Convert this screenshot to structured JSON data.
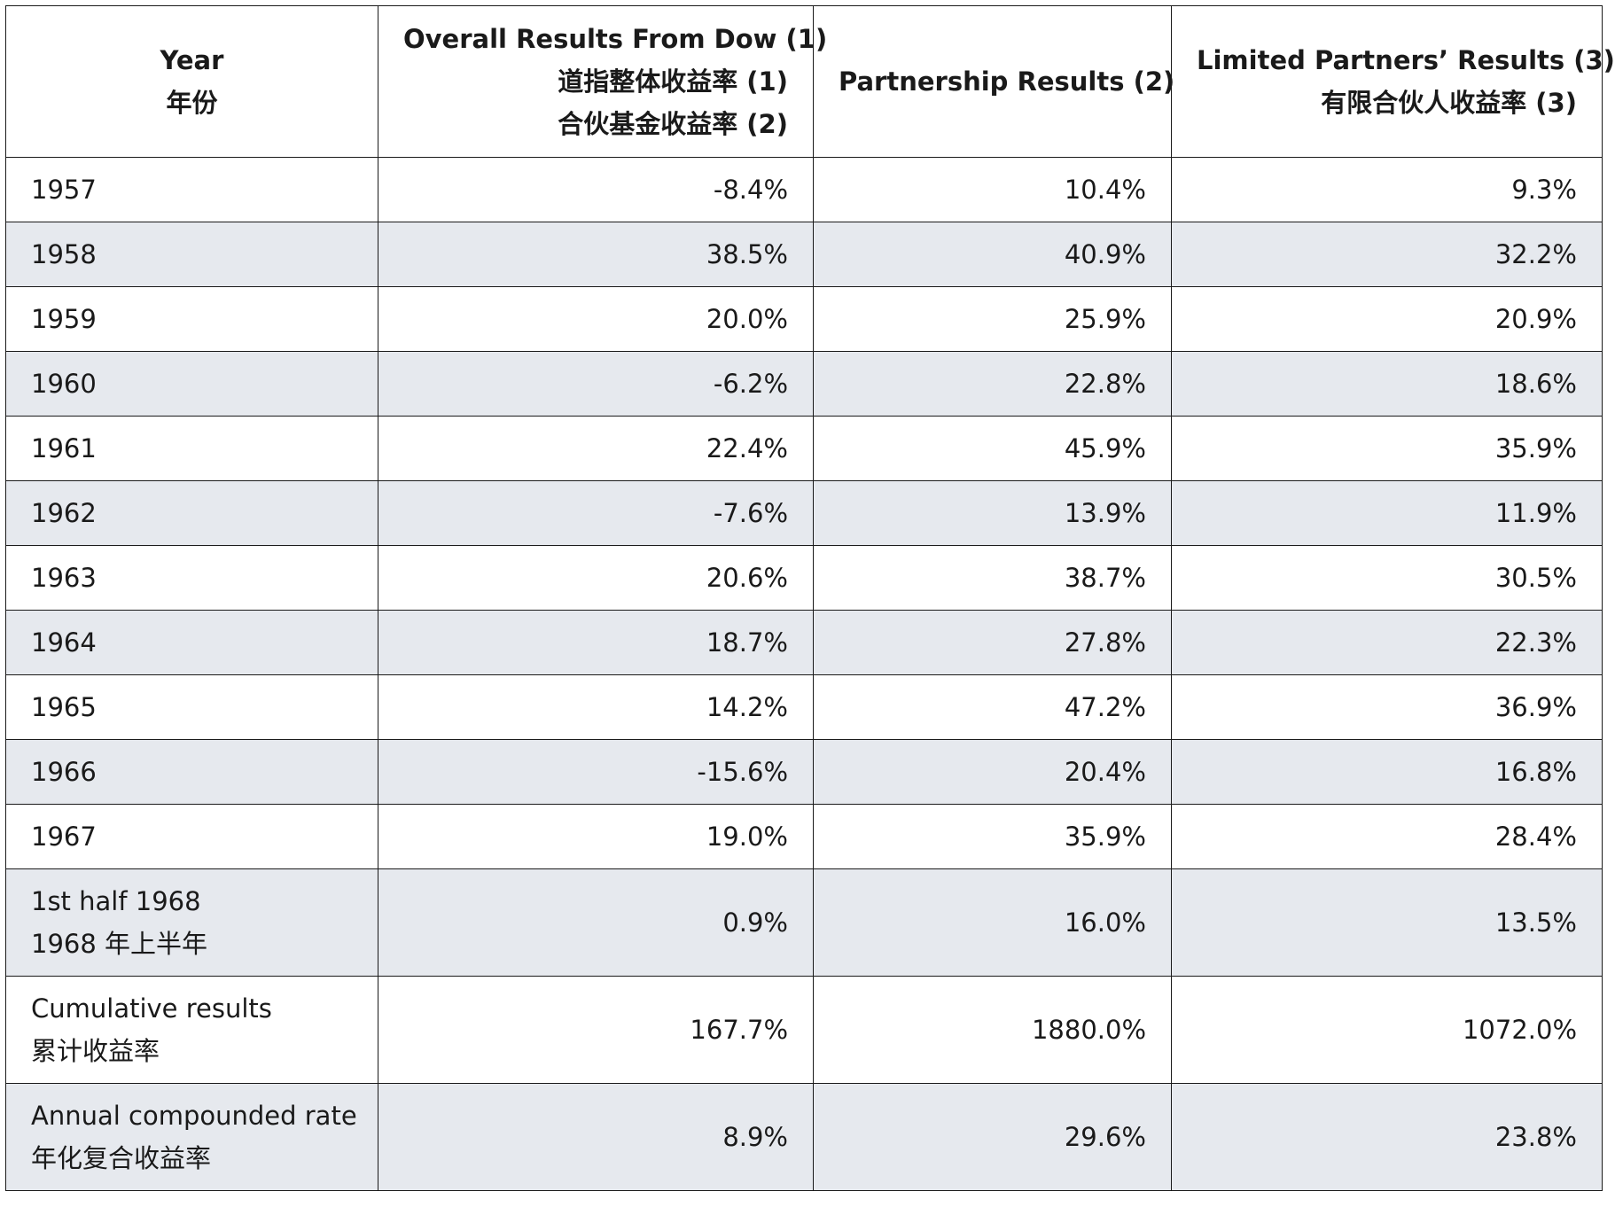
{
  "header": {
    "year": [
      "Year",
      "年份"
    ],
    "dow": [
      "Overall Results From Dow (1)",
      "道指整体收益率 (1)",
      "合伙基金收益率 (2)"
    ],
    "partnership": [
      "Partnership Results (2)"
    ],
    "limited": [
      "Limited Partners’ Results (3)",
      "有限合伙人收益率 (3)"
    ]
  },
  "rows": [
    {
      "year": [
        "1957"
      ],
      "dow": "-8.4%",
      "partnership": "10.4%",
      "limited": "9.3%"
    },
    {
      "year": [
        "1958"
      ],
      "dow": "38.5%",
      "partnership": "40.9%",
      "limited": "32.2%"
    },
    {
      "year": [
        "1959"
      ],
      "dow": "20.0%",
      "partnership": "25.9%",
      "limited": "20.9%"
    },
    {
      "year": [
        "1960"
      ],
      "dow": "-6.2%",
      "partnership": "22.8%",
      "limited": "18.6%"
    },
    {
      "year": [
        "1961"
      ],
      "dow": "22.4%",
      "partnership": "45.9%",
      "limited": "35.9%"
    },
    {
      "year": [
        "1962"
      ],
      "dow": "-7.6%",
      "partnership": "13.9%",
      "limited": "11.9%"
    },
    {
      "year": [
        "1963"
      ],
      "dow": "20.6%",
      "partnership": "38.7%",
      "limited": "30.5%"
    },
    {
      "year": [
        "1964"
      ],
      "dow": "18.7%",
      "partnership": "27.8%",
      "limited": "22.3%"
    },
    {
      "year": [
        "1965"
      ],
      "dow": "14.2%",
      "partnership": "47.2%",
      "limited": "36.9%"
    },
    {
      "year": [
        "1966"
      ],
      "dow": "-15.6%",
      "partnership": "20.4%",
      "limited": "16.8%"
    },
    {
      "year": [
        "1967"
      ],
      "dow": "19.0%",
      "partnership": "35.9%",
      "limited": "28.4%"
    },
    {
      "year": [
        "1st half 1968",
        "1968 年上半年"
      ],
      "dow": "0.9%",
      "partnership": "16.0%",
      "limited": "13.5%"
    },
    {
      "year": [
        "Cumulative results",
        "累计收益率"
      ],
      "dow": "167.7%",
      "partnership": "1880.0%",
      "limited": "1072.0%"
    },
    {
      "year": [
        "Annual compounded rate",
        "年化复合收益率"
      ],
      "dow": "8.9%",
      "partnership": "29.6%",
      "limited": "23.8%"
    }
  ]
}
